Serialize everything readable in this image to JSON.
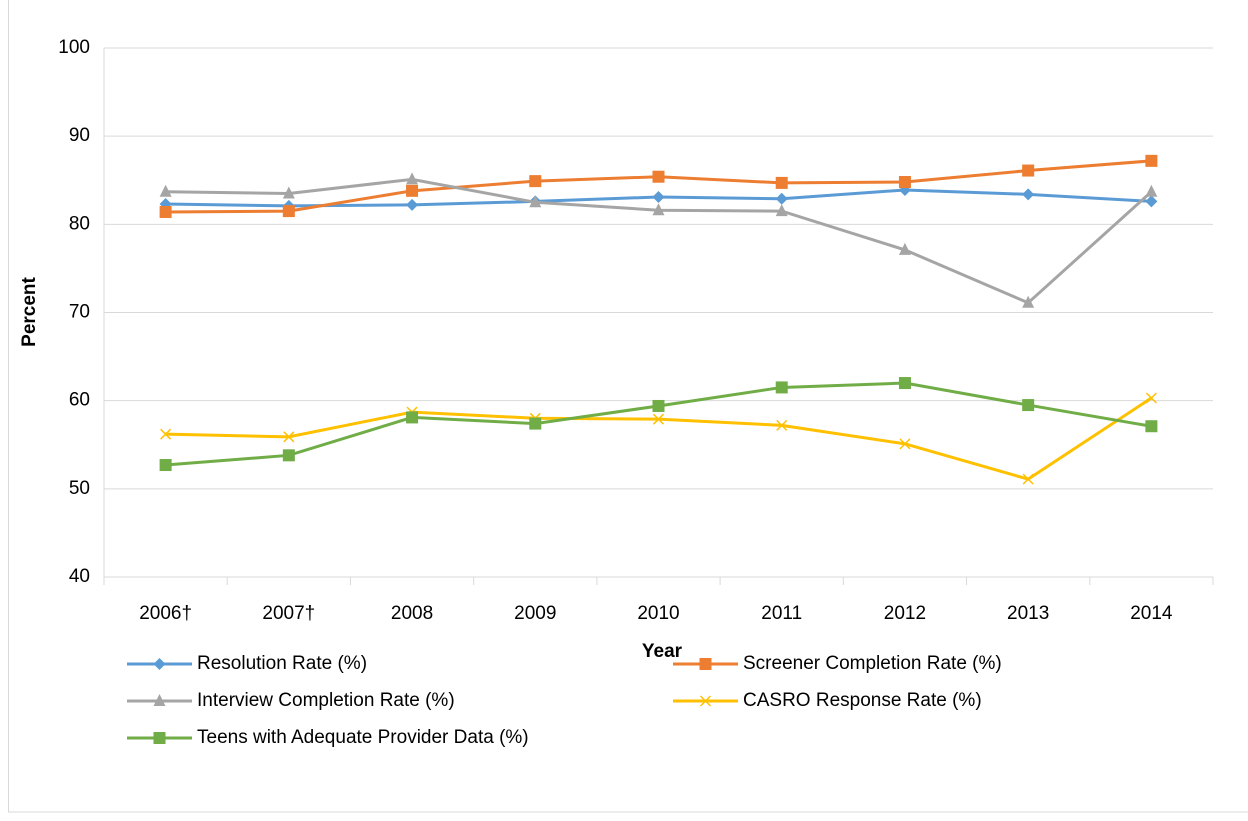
{
  "chart_data": {
    "type": "line",
    "xlabel": "Year",
    "ylabel": "Percent",
    "categories": [
      "2006†",
      "2007†",
      "2008",
      "2009",
      "2010",
      "2011",
      "2012",
      "2013",
      "2014"
    ],
    "series": [
      {
        "name": "Resolution Rate (%)",
        "color": "#5b9bd5",
        "marker": "diamond",
        "values": [
          82.3,
          82.1,
          82.2,
          82.6,
          83.1,
          82.9,
          83.9,
          83.4,
          82.6
        ]
      },
      {
        "name": "Screener Completion Rate (%)",
        "color": "#ed7d31",
        "marker": "square",
        "values": [
          81.4,
          81.5,
          83.8,
          84.9,
          85.4,
          84.7,
          84.8,
          86.1,
          87.2
        ]
      },
      {
        "name": "Interview Completion Rate (%)",
        "color": "#a5a5a5",
        "marker": "triangle",
        "values": [
          83.7,
          83.5,
          85.1,
          82.5,
          81.6,
          81.5,
          77.1,
          71.1,
          83.7
        ]
      },
      {
        "name": "CASRO Response Rate (%)",
        "color": "#ffc000",
        "marker": "x",
        "values": [
          56.2,
          55.9,
          58.7,
          58.0,
          57.9,
          57.2,
          55.1,
          51.1,
          60.3
        ]
      },
      {
        "name": "Teens with Adequate Provider Data (%)",
        "color": "#70ad47",
        "marker": "square",
        "values": [
          52.7,
          53.8,
          58.1,
          57.4,
          59.4,
          61.5,
          62.0,
          59.5,
          57.1
        ]
      }
    ],
    "ylim": [
      40,
      100
    ],
    "yticks": [
      40,
      50,
      60,
      70,
      80,
      90,
      100
    ],
    "grid": true
  }
}
